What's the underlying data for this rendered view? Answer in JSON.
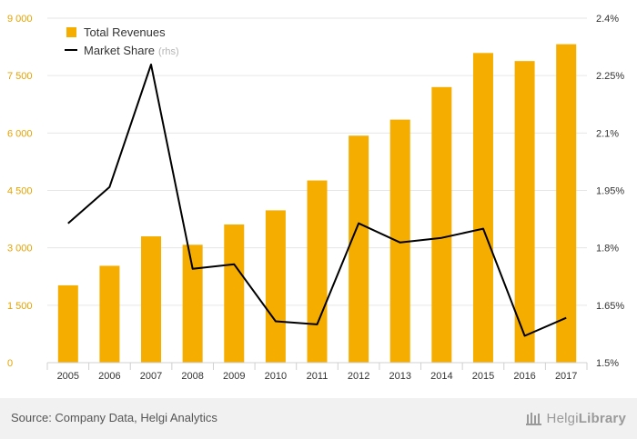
{
  "chart_data": {
    "type": "bar",
    "categories": [
      "2005",
      "2006",
      "2007",
      "2008",
      "2009",
      "2010",
      "2011",
      "2012",
      "2013",
      "2014",
      "2015",
      "2016",
      "2017"
    ],
    "series": [
      {
        "name": "Total Revenues",
        "type": "bar",
        "axis": "left",
        "color": "#f5ad00",
        "values": [
          2020,
          2530,
          3300,
          3080,
          3610,
          3980,
          4760,
          5930,
          6350,
          7200,
          8090,
          7880,
          8320
        ]
      },
      {
        "name": "Market Share",
        "name_suffix": "(rhs)",
        "type": "line",
        "axis": "right",
        "color": "#000000",
        "values": [
          1.864,
          1.959,
          2.279,
          1.745,
          1.757,
          1.608,
          1.6,
          1.864,
          1.814,
          1.826,
          1.85,
          1.57,
          1.617
        ]
      }
    ],
    "ylim": [
      0,
      9000
    ],
    "yticks": [
      0,
      1500,
      3000,
      4500,
      6000,
      7500,
      9000
    ],
    "ytick_labels": [
      "0",
      "1 500",
      "3 000",
      "4 500",
      "6 000",
      "7 500",
      "9 000"
    ],
    "y2lim": [
      1.5,
      2.4
    ],
    "y2ticks": [
      1.5,
      1.65,
      1.8,
      1.95,
      2.1,
      2.25,
      2.4
    ],
    "y2tick_labels": [
      "1.5%",
      "1.65%",
      "1.8%",
      "1.95%",
      "2.1%",
      "2.25%",
      "2.4%"
    ],
    "grid": true,
    "legend_position": "top-left"
  },
  "footer": {
    "source": "Source: Company Data, Helgi Analytics",
    "brand_light": "Helgi",
    "brand_bold": "Library"
  },
  "colors": {
    "bar": "#f5ad00",
    "left_axis_labels": "#e6a200",
    "right_axis_labels": "#333333",
    "grid": "#e6e6e6",
    "footer_bg": "#f1f1f1"
  }
}
